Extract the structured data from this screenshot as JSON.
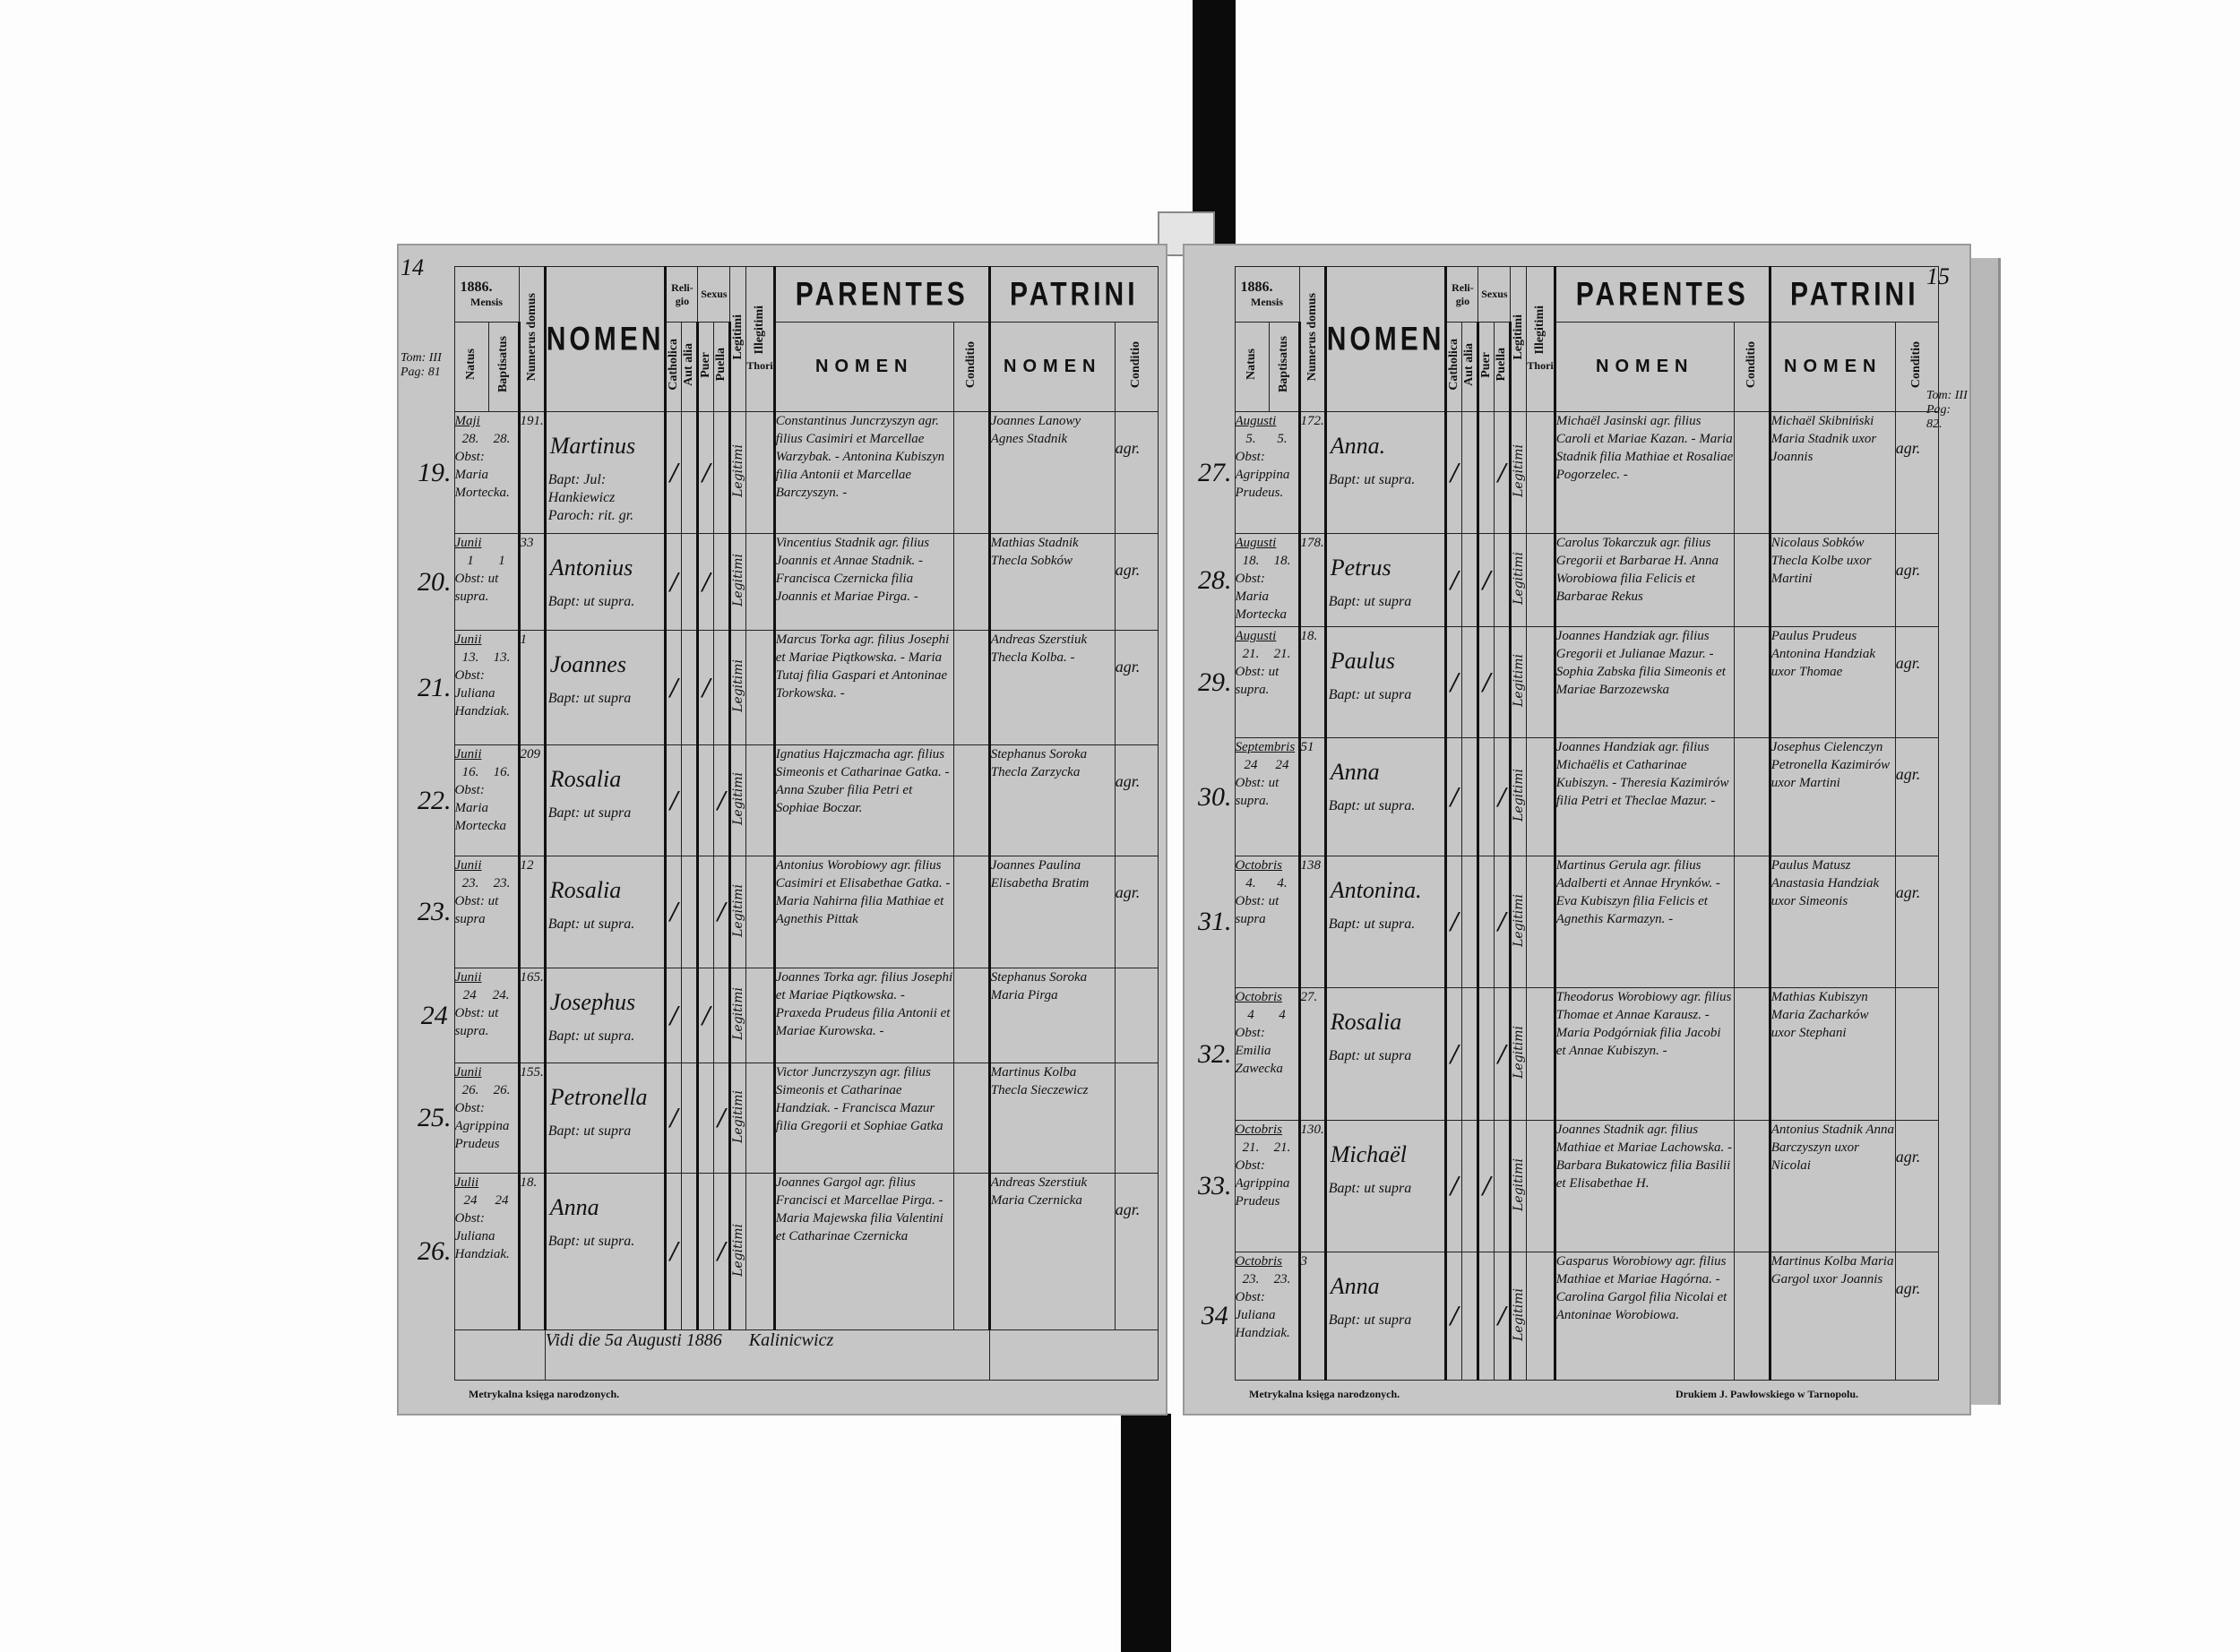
{
  "header": {
    "year": "1886.",
    "mensis": "Mensis",
    "natus": "Natus",
    "baptisatus": "Baptisatus",
    "numerus_domus": "Numerus domus",
    "nomen": "NOMEN",
    "religio": "Reli-gio",
    "catholica": "Catholica",
    "aut_alia": "Aut alia",
    "sexus": "Sexus",
    "puer": "Puer",
    "puella": "Puella",
    "legitimi": "Legitimi",
    "illegitimi": "Illegitimi",
    "thori": "Thori",
    "parentes": "PARENTES",
    "patrini": "PATRINI",
    "sub_nomen": "NOMEN",
    "conditio": "Conditio"
  },
  "left_page": {
    "page_number": "14",
    "margin_note": "Tom: III\nPag: 81",
    "entries": [
      {
        "no": "19.",
        "month": "Maji",
        "natus": "28.",
        "bapt": "28.",
        "domus": "191.",
        "obst": "Obst: Maria Mortecka.",
        "name": "Martinus",
        "baptizans": "Bapt: Jul: Hankiewicz Paroch: rit. gr.",
        "religio": "catholica",
        "sex": "puer",
        "legit": "Legitimi",
        "parents": "Constantinus Juncrzyszyn agr. filius Casimiri et Marcellae Warzybak. - Antonina Kubiszyn filia Antonii et Marcellae Barczyszyn. -",
        "patrini": "Joannes Lanowy Agnes Stadnik",
        "conditio": "agr."
      },
      {
        "no": "20.",
        "month": "Junii",
        "natus": "1",
        "bapt": "1",
        "domus": "33",
        "obst": "Obst: ut supra.",
        "name": "Antonius",
        "baptizans": "Bapt: ut supra.",
        "religio": "catholica",
        "sex": "puer",
        "legit": "Legitimi",
        "parents": "Vincentius Stadnik agr. filius Joannis et Annae Stadnik. - Francisca Czernicka filia Joannis et Mariae Pirga. -",
        "patrini": "Mathias Stadnik Thecla Sobków",
        "conditio": "agr."
      },
      {
        "no": "21.",
        "month": "Junii",
        "natus": "13.",
        "bapt": "13.",
        "domus": "1",
        "obst": "Obst: Juliana Handziak.",
        "name": "Joannes",
        "baptizans": "Bapt: ut supra",
        "religio": "catholica",
        "sex": "puer",
        "legit": "Legitimi",
        "parents": "Marcus Torka agr. filius Josephi et Mariae Piątkowska. - Maria Tutaj filia Gaspari et Antoninae Torkowska. -",
        "patrini": "Andreas Szerstiuk Thecla Kolba. -",
        "conditio": "agr."
      },
      {
        "no": "22.",
        "month": "Junii",
        "natus": "16.",
        "bapt": "16.",
        "domus": "209",
        "obst": "Obst: Maria Mortecka",
        "name": "Rosalia",
        "baptizans": "Bapt: ut supra",
        "religio": "catholica",
        "sex": "puella",
        "legit": "Legitimi",
        "parents": "Ignatius Hajczmacha agr. filius Simeonis et Catharinae Gatka. - Anna Szuber filia Petri et Sophiae Boczar.",
        "patrini": "Stephanus Soroka Thecla Zarzycka",
        "conditio": "agr."
      },
      {
        "no": "23.",
        "month": "Junii",
        "natus": "23.",
        "bapt": "23.",
        "domus": "12",
        "obst": "Obst: ut supra",
        "name": "Rosalia",
        "baptizans": "Bapt: ut supra.",
        "religio": "catholica",
        "sex": "puella",
        "legit": "Legitimi",
        "parents": "Antonius Worobiowy agr. filius Casimiri et Elisabethae Gatka. - Maria Nahirna filia Mathiae et Agnethis Pittak",
        "patrini": "Joannes Paulina Elisabetha Bratim",
        "conditio": "agr."
      },
      {
        "no": "24",
        "month": "Junii",
        "natus": "24",
        "bapt": "24.",
        "domus": "165.",
        "obst": "Obst: ut supra.",
        "name": "Josephus",
        "baptizans": "Bapt: ut supra.",
        "religio": "catholica",
        "sex": "puer",
        "legit": "Legitimi",
        "parents": "Joannes Torka agr. filius Josephi et Mariae Piątkowska. - Praxeda Prudeus filia Antonii et Mariae Kurowska. -",
        "patrini": "Stephanus Soroka Maria Pirga",
        "conditio": ""
      },
      {
        "no": "25.",
        "month": "Junii",
        "natus": "26.",
        "bapt": "26.",
        "domus": "155.",
        "obst": "Obst: Agrippina Prudeus",
        "name": "Petronella",
        "baptizans": "Bapt: ut supra",
        "religio": "catholica",
        "sex": "puella",
        "legit": "Legitimi",
        "parents": "Victor Juncrzyszyn agr. filius Simeonis et Catharinae Handziak. - Francisca Mazur filia Gregorii et Sophiae Gatka",
        "patrini": "Martinus Kolba Thecla Sieczewicz",
        "conditio": ""
      },
      {
        "no": "26.",
        "month": "Julii",
        "natus": "24",
        "bapt": "24",
        "domus": "18.",
        "obst": "Obst: Juliana Handziak.",
        "name": "Anna",
        "baptizans": "Bapt: ut supra.",
        "religio": "catholica",
        "sex": "puella",
        "legit": "Legitimi",
        "parents": "Joannes Gargol agr. filius Francisci et Marcellae Pirga. - Maria Majewska filia Valentini et Catharinae Czernicka",
        "patrini": "Andreas Szerstiuk Maria Czernicka",
        "conditio": "agr."
      }
    ],
    "vidi_note": "Vidi die 5a Augusti 1886",
    "signature": "Kalinicwicz",
    "footer": "Metrykalna księga narodzonych."
  },
  "right_page": {
    "page_number": "15",
    "margin_note": "Tom: III\nPag: 82.",
    "entries": [
      {
        "no": "27.",
        "month": "Augusti",
        "natus": "5.",
        "bapt": "5.",
        "domus": "172.",
        "obst": "Obst: Agrippina Prudeus.",
        "name": "Anna.",
        "baptizans": "Bapt: ut supra.",
        "religio": "catholica",
        "sex": "puella",
        "legit": "Legitimi",
        "parents": "Michaël Jasinski agr. filius Caroli et Mariae Kazan. - Maria Stadnik filia Mathiae et Rosaliae Pogorzelec. -",
        "patrini": "Michaël Skibniński Maria Stadnik uxor Joannis",
        "conditio": "agr."
      },
      {
        "no": "28.",
        "month": "Augusti",
        "natus": "18.",
        "bapt": "18.",
        "domus": "178.",
        "obst": "Obst: Maria Mortecka",
        "name": "Petrus",
        "baptizans": "Bapt: ut supra",
        "religio": "catholica",
        "sex": "puer",
        "legit": "Legitimi",
        "parents": "Carolus Tokarczuk agr. filius Gregorii et Barbarae H. Anna Worobiowa filia Felicis et Barbarae Rekus",
        "patrini": "Nicolaus Sobków Thecla Kolbe uxor Martini",
        "conditio": "agr."
      },
      {
        "no": "29.",
        "month": "Augusti",
        "natus": "21.",
        "bapt": "21.",
        "domus": "18.",
        "obst": "Obst: ut supra.",
        "name": "Paulus",
        "baptizans": "Bapt: ut supra",
        "religio": "catholica",
        "sex": "puer",
        "legit": "Legitimi",
        "parents": "Joannes Handziak agr. filius Gregorii et Julianae Mazur. - Sophia Zabska filia Simeonis et Mariae Barzozewska",
        "patrini": "Paulus Prudeus Antonina Handziak uxor Thomae",
        "conditio": "agr."
      },
      {
        "no": "30.",
        "month": "Septembris",
        "natus": "24",
        "bapt": "24",
        "domus": "51",
        "obst": "Obst: ut supra.",
        "name": "Anna",
        "baptizans": "Bapt: ut supra.",
        "religio": "catholica",
        "sex": "puella",
        "legit": "Legitimi",
        "parents": "Joannes Handziak agr. filius Michaëlis et Catharinae Kubiszyn. - Theresia Kazimirów filia Petri et Theclae Mazur. -",
        "patrini": "Josephus Cielenczyn Petronella Kazimirów uxor Martini",
        "conditio": "agr."
      },
      {
        "no": "31.",
        "month": "Octobris",
        "natus": "4.",
        "bapt": "4.",
        "domus": "138",
        "obst": "Obst: ut supra",
        "name": "Antonina.",
        "baptizans": "Bapt: ut supra.",
        "religio": "catholica",
        "sex": "puella",
        "legit": "Legitimi",
        "parents": "Martinus Gerula agr. filius Adalberti et Annae Hrynków. - Eva Kubiszyn filia Felicis et Agnethis Karmazyn. -",
        "patrini": "Paulus Matusz Anastasia Handziak uxor Simeonis",
        "conditio": "agr."
      },
      {
        "no": "32.",
        "month": "Octobris",
        "natus": "4",
        "bapt": "4",
        "domus": "27.",
        "obst": "Obst: Emilia Zawecka",
        "name": "Rosalia",
        "baptizans": "Bapt: ut supra",
        "religio": "catholica",
        "sex": "puella",
        "legit": "Legitimi",
        "parents": "Theodorus Worobiowy agr. filius Thomae et Annae Karausz. - Maria Podgórniak filia Jacobi et Annae Kubiszyn. -",
        "patrini": "Mathias Kubiszyn Maria Zacharków uxor Stephani",
        "conditio": ""
      },
      {
        "no": "33.",
        "month": "Octobris",
        "natus": "21.",
        "bapt": "21.",
        "domus": "130.",
        "obst": "Obst: Agrippina Prudeus",
        "name": "Michaël",
        "baptizans": "Bapt: ut supra",
        "religio": "catholica",
        "sex": "puer",
        "legit": "Legitimi",
        "parents": "Joannes Stadnik agr. filius Mathiae et Mariae Lachowska. - Barbara Bukatowicz filia Basilii et Elisabethae H.",
        "patrini": "Antonius Stadnik Anna Barczyszyn uxor Nicolai",
        "conditio": "agr."
      },
      {
        "no": "34",
        "month": "Octobris",
        "natus": "23.",
        "bapt": "23.",
        "domus": "3",
        "obst": "Obst: Juliana Handziak.",
        "name": "Anna",
        "baptizans": "Bapt: ut supra",
        "religio": "catholica",
        "sex": "puella",
        "legit": "Legitimi",
        "parents": "Gasparus Worobiowy agr. filius Mathiae et Mariae Hagórna. - Carolina Gargol filia Nicolai et Antoninae Worobiowa.",
        "patrini": "Martinus Kolba Maria Gargol uxor Joannis",
        "conditio": "agr."
      }
    ],
    "footer_left": "Metrykalna księga narodzonych.",
    "footer_right": "Drukiem J. Pawłowskiego w Tarnopolu."
  }
}
